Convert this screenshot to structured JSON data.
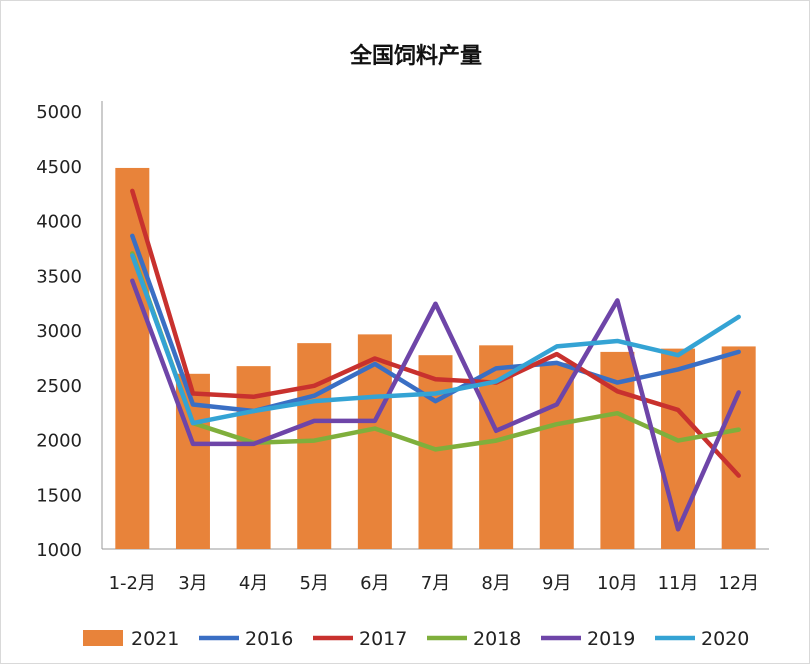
{
  "chart_data": {
    "type": "bar+line",
    "title": "全国饲料产量",
    "categories": [
      "1-2月",
      "3月",
      "4月",
      "5月",
      "6月",
      "7月",
      "8月",
      "9月",
      "10月",
      "11月",
      "12月"
    ],
    "ylim": [
      1000,
      5000
    ],
    "yticks": [
      1000,
      1500,
      2000,
      2500,
      3000,
      3500,
      4000,
      4500,
      5000
    ],
    "grid": false,
    "legend_position": "bottom",
    "bar_series": {
      "name": "2021",
      "color": "#E8833A",
      "values": [
        4480,
        2600,
        2670,
        2880,
        2960,
        2770,
        2860,
        2700,
        2800,
        2830,
        2850
      ]
    },
    "series": [
      {
        "name": "2016",
        "color": "#3A6FC4",
        "values": [
          3860,
          2320,
          2260,
          2400,
          2690,
          2350,
          2650,
          2700,
          2520,
          2640,
          2800
        ]
      },
      {
        "name": "2017",
        "color": "#C8312E",
        "values": [
          4270,
          2420,
          2390,
          2490,
          2740,
          2550,
          2520,
          2780,
          2440,
          2270,
          1670
        ]
      },
      {
        "name": "2018",
        "color": "#7FAF3C",
        "values": [
          3700,
          2150,
          1970,
          1990,
          2100,
          1910,
          1990,
          2140,
          2240,
          1990,
          2090
        ]
      },
      {
        "name": "2019",
        "color": "#6E45A8",
        "values": [
          3450,
          1960,
          1960,
          2170,
          2170,
          3240,
          2080,
          2320,
          3270,
          1180,
          2430
        ]
      },
      {
        "name": "2020",
        "color": "#34A3D4",
        "values": [
          3680,
          2150,
          2260,
          2350,
          2390,
          2420,
          2530,
          2850,
          2900,
          2770,
          3120
        ]
      }
    ]
  }
}
